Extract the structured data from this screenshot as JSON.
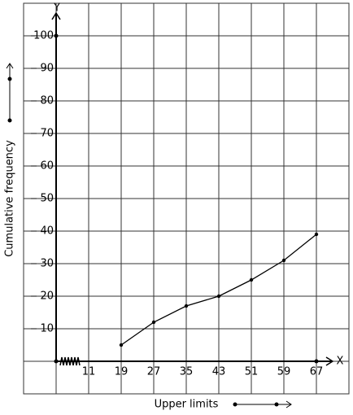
{
  "chart_data": {
    "type": "line",
    "x_label": "Upper limits",
    "y_label": "Cumulative frequency",
    "x_axis_name": "X",
    "y_axis_name": "Y",
    "x": [
      19,
      27,
      35,
      43,
      51,
      59,
      67
    ],
    "values": [
      5,
      12,
      17,
      20,
      25,
      31,
      39
    ],
    "color": "#000000",
    "xlim": [
      3,
      71
    ],
    "xticks": [
      11,
      19,
      27,
      35,
      43,
      51,
      59,
      67
    ],
    "ylim": [
      0,
      110
    ],
    "yticks": [
      10,
      20,
      30,
      40,
      50,
      60,
      70,
      80,
      90,
      100
    ],
    "grid": true
  }
}
